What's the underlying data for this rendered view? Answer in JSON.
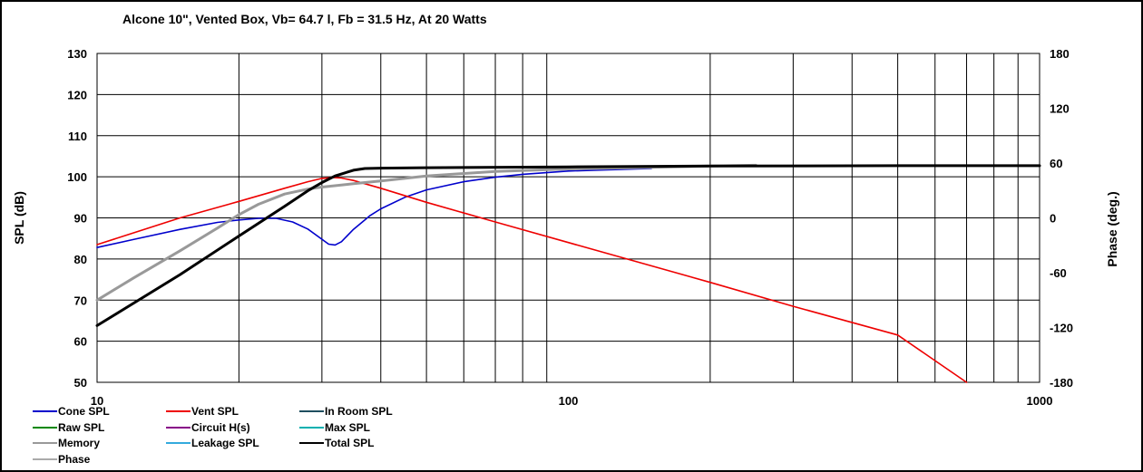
{
  "chart_data": {
    "type": "line",
    "title": "Alcone 10\",  Vented Box, Vb= 64.7 l,  Fb = 31.5 Hz,  At 20 Watts",
    "xlabel": "",
    "ylabel": "SPL (dB)",
    "y2label": "Phase (deg.)",
    "xscale": "log",
    "xlim": [
      10,
      1000
    ],
    "ylim": [
      50,
      130
    ],
    "y2lim": [
      -180,
      180
    ],
    "grid": true,
    "x_tick_labels": [
      "10",
      "100",
      "1000"
    ],
    "y_tick_labels": [
      "50",
      "60",
      "70",
      "80",
      "90",
      "100",
      "110",
      "120",
      "130"
    ],
    "y2_tick_labels": [
      "-180",
      "-120",
      "-60",
      "0",
      "60",
      "120",
      "180"
    ],
    "legend_position": "bottom",
    "legend": [
      {
        "label": "Cone SPL",
        "color": "#0000cc"
      },
      {
        "label": "Vent SPL",
        "color": "#ee0000"
      },
      {
        "label": "In Room SPL",
        "color": "#1f4e5f"
      },
      {
        "label": "Raw SPL",
        "color": "#008800"
      },
      {
        "label": "Circuit H(s)",
        "color": "#880088"
      },
      {
        "label": "Max SPL",
        "color": "#00b0b0"
      },
      {
        "label": "Memory",
        "color": "#999999"
      },
      {
        "label": "Leakage SPL",
        "color": "#33aadd"
      },
      {
        "label": "Total SPL",
        "color": "#000000"
      },
      {
        "label": "Phase",
        "color": "#aaaaaa"
      }
    ],
    "series": [
      {
        "name": "Cone SPL",
        "color": "#0000cc",
        "width": 1.6,
        "x": [
          10,
          12,
          15,
          18,
          20,
          22,
          24,
          26,
          28,
          30,
          31,
          32,
          33,
          35,
          38,
          40,
          45,
          50,
          60,
          70,
          80,
          100,
          150
        ],
        "y": [
          82.8,
          84.8,
          87.2,
          88.9,
          89.5,
          89.9,
          89.9,
          89.0,
          87.3,
          84.8,
          83.6,
          83.4,
          84.2,
          87.2,
          90.6,
          92.2,
          95.0,
          96.8,
          98.8,
          99.9,
          100.6,
          101.4,
          102.0
        ]
      },
      {
        "name": "Vent SPL",
        "color": "#ee0000",
        "width": 1.6,
        "x": [
          10,
          15,
          20,
          25,
          28,
          30,
          31.5,
          33,
          35,
          40,
          50,
          70,
          100,
          200,
          300,
          500,
          700
        ],
        "y": [
          83.5,
          90.0,
          94.0,
          97.2,
          98.8,
          99.6,
          99.8,
          99.7,
          99.1,
          97.2,
          93.8,
          89.0,
          84.0,
          74.3,
          68.5,
          61.5,
          50.0
        ]
      },
      {
        "name": "Memory",
        "color": "#999999",
        "width": 3,
        "x": [
          10,
          12,
          15,
          18,
          20,
          22,
          25,
          28,
          30,
          35,
          40,
          50,
          70,
          100,
          150,
          200,
          250
        ],
        "y": [
          70.0,
          75.5,
          82.0,
          87.5,
          90.8,
          93.3,
          95.8,
          97.0,
          97.5,
          98.3,
          99.0,
          100.2,
          101.3,
          101.9,
          102.3,
          102.6,
          102.8
        ]
      },
      {
        "name": "Total SPL",
        "color": "#000000",
        "width": 3,
        "x": [
          10,
          15,
          20,
          25,
          28,
          30,
          32,
          35,
          37,
          40,
          50,
          100,
          200,
          500,
          1000
        ],
        "y": [
          63.8,
          76.2,
          85.6,
          92.8,
          96.6,
          98.6,
          100.2,
          101.6,
          102.0,
          102.1,
          102.2,
          102.4,
          102.6,
          102.7,
          102.7
        ]
      }
    ]
  }
}
